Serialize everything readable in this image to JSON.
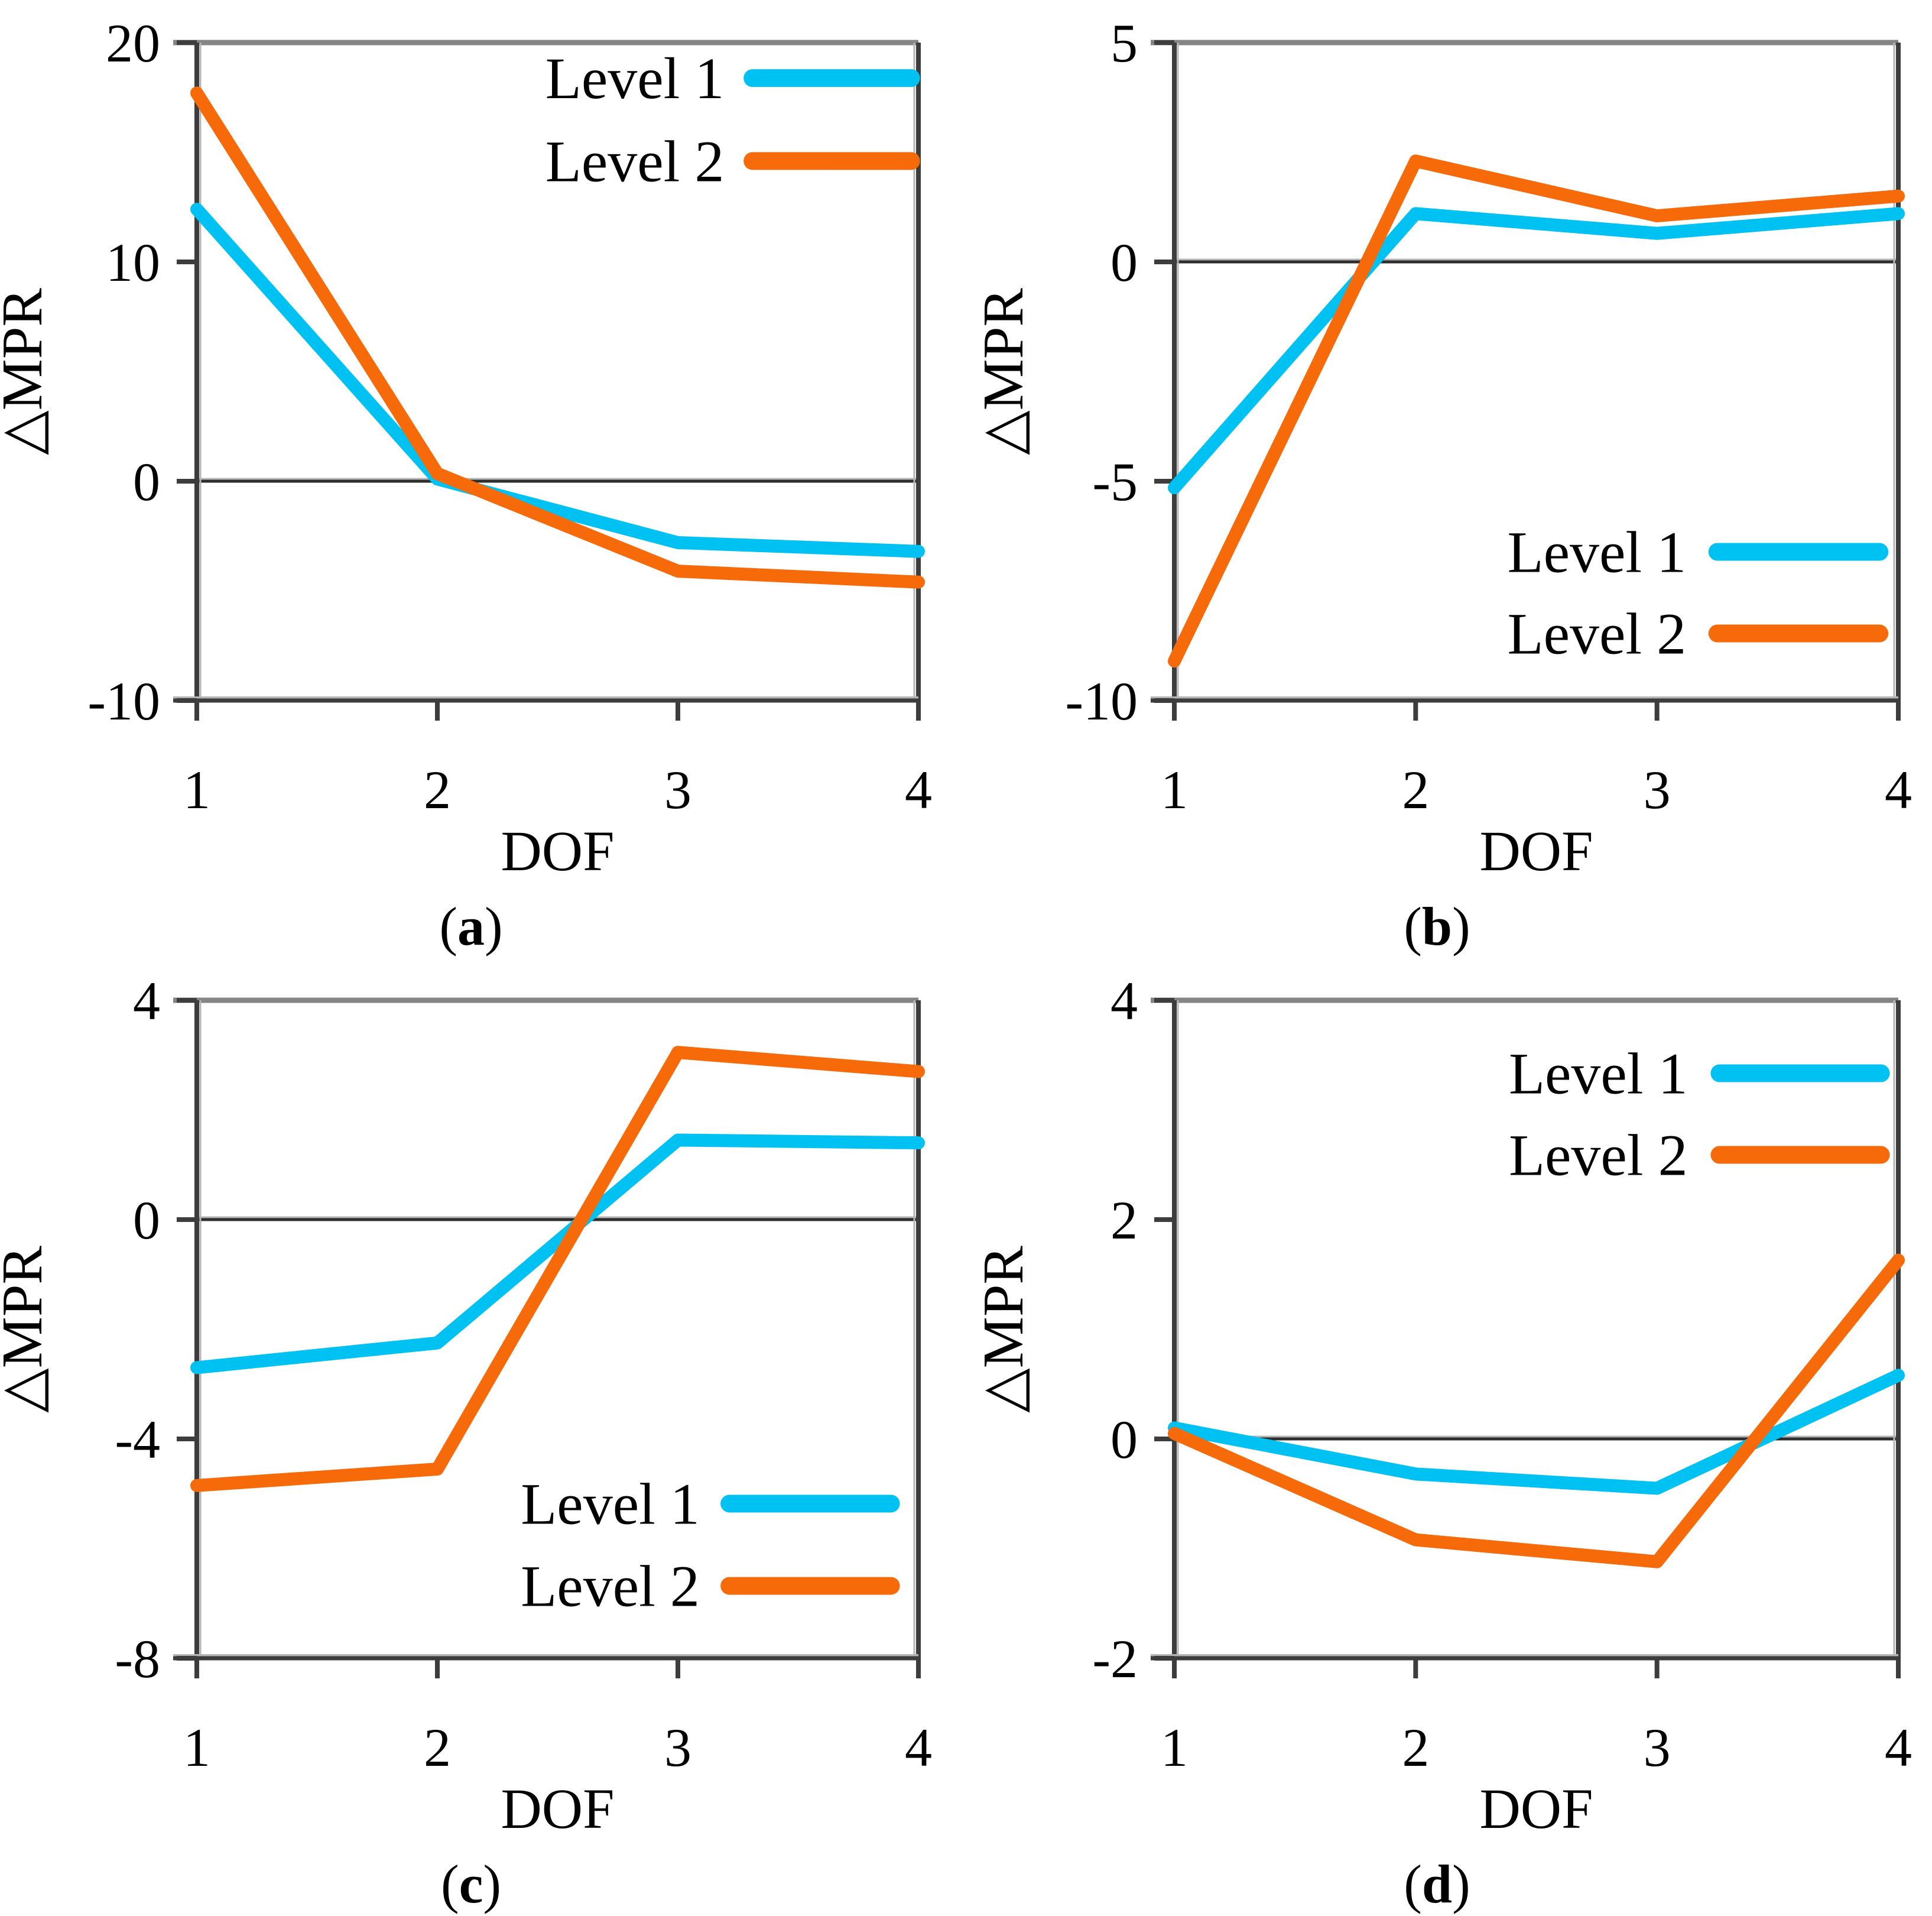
{
  "figure": {
    "background": "#ffffff",
    "series_labels": [
      "Level 1",
      "Level 2"
    ],
    "colors": {
      "level1": "#00c2f2",
      "level2": "#f76a0a",
      "plot_border": "#858585",
      "axis_line": "#3d3d3d",
      "axis_halo": "#b5b5b5",
      "zero_line": "#2e2e2e",
      "text": "#000000"
    }
  },
  "chart_data": [
    {
      "type": "line",
      "caption": "(a)",
      "xlabel": "DOF",
      "ylabel": "△MPR",
      "x": [
        1,
        2,
        3,
        4
      ],
      "xlim": [
        1,
        4
      ],
      "ylim": [
        -10,
        20
      ],
      "xticks": [
        1,
        2,
        3,
        4
      ],
      "yticks": [
        20,
        10,
        0,
        -10
      ],
      "zero_line": true,
      "grid": false,
      "legend_position": "top-right",
      "series": [
        {
          "name": "Level 1",
          "color": "#00c2f2",
          "values": [
            12.4,
            0.1,
            -2.8,
            -3.2
          ]
        },
        {
          "name": "Level 2",
          "color": "#f76a0a",
          "values": [
            17.7,
            0.35,
            -4.1,
            -4.6
          ]
        }
      ]
    },
    {
      "type": "line",
      "caption": "(b)",
      "xlabel": "DOF",
      "ylabel": "△MPR",
      "x": [
        1,
        2,
        3,
        4
      ],
      "xlim": [
        1,
        4
      ],
      "ylim": [
        -10,
        5
      ],
      "xticks": [
        1,
        2,
        3,
        4
      ],
      "yticks": [
        5,
        0,
        -5,
        -10
      ],
      "zero_line": true,
      "grid": false,
      "legend_position": "bottom-right",
      "series": [
        {
          "name": "Level 1",
          "color": "#00c2f2",
          "values": [
            -5.15,
            1.1,
            0.65,
            1.1
          ]
        },
        {
          "name": "Level 2",
          "color": "#f76a0a",
          "values": [
            -9.1,
            2.3,
            1.05,
            1.5
          ]
        }
      ]
    },
    {
      "type": "line",
      "caption": "(c)",
      "xlabel": "DOF",
      "ylabel": "△MPR",
      "x": [
        1,
        2,
        3,
        4
      ],
      "xlim": [
        1,
        4
      ],
      "ylim": [
        -8,
        4
      ],
      "xticks": [
        1,
        2,
        3,
        4
      ],
      "yticks": [
        4,
        0,
        -4,
        -8
      ],
      "zero_line": true,
      "grid": false,
      "legend_position": "bottom-right",
      "series": [
        {
          "name": "Level 1",
          "color": "#00c2f2",
          "values": [
            -2.7,
            -2.25,
            1.45,
            1.4
          ]
        },
        {
          "name": "Level 2",
          "color": "#f76a0a",
          "values": [
            -4.85,
            -4.55,
            3.05,
            2.7
          ]
        }
      ]
    },
    {
      "type": "line",
      "caption": "(d)",
      "xlabel": "DOF",
      "ylabel": "△MPR",
      "x": [
        1,
        2,
        3,
        4
      ],
      "xlim": [
        1,
        4
      ],
      "ylim": [
        -2,
        4
      ],
      "xticks": [
        1,
        2,
        3,
        4
      ],
      "yticks": [
        4,
        2,
        0,
        -2
      ],
      "zero_line": true,
      "grid": false,
      "legend_position": "top-right",
      "series": [
        {
          "name": "Level 1",
          "color": "#00c2f2",
          "values": [
            0.1,
            -0.32,
            -0.45,
            0.58
          ]
        },
        {
          "name": "Level 2",
          "color": "#f76a0a",
          "values": [
            0.05,
            -0.92,
            -1.12,
            1.63
          ]
        }
      ]
    }
  ]
}
